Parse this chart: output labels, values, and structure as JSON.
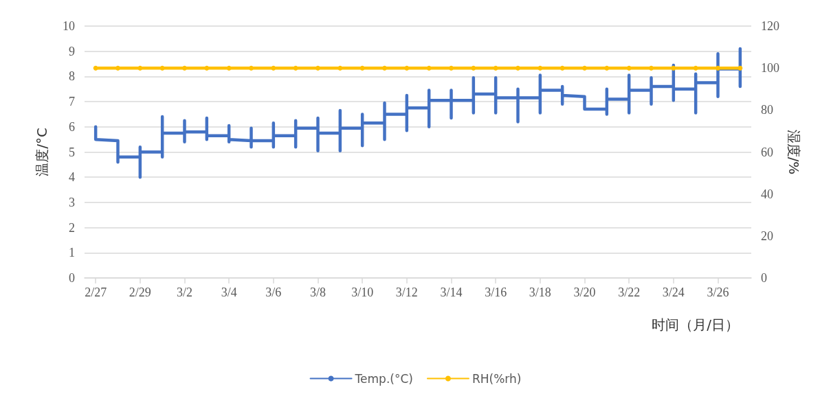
{
  "chart_data": {
    "type": "line",
    "xlabel": "时间（月/日）",
    "ylabel": "温度/°C",
    "y2label": "湿度/%",
    "xlim": [
      "--02-26T12:00",
      "--03-27T12:00"
    ],
    "xticks": [
      {
        "value": "--02-27",
        "label": "2/27"
      },
      {
        "value": "--02-29",
        "label": "2/29"
      },
      {
        "value": "--03-02",
        "label": "3/2"
      },
      {
        "value": "--03-04",
        "label": "3/4"
      },
      {
        "value": "--03-06",
        "label": "3/6"
      },
      {
        "value": "--03-08",
        "label": "3/8"
      },
      {
        "value": "--03-10",
        "label": "3/10"
      },
      {
        "value": "--03-12",
        "label": "3/12"
      },
      {
        "value": "--03-14",
        "label": "3/14"
      },
      {
        "value": "--03-16",
        "label": "3/16"
      },
      {
        "value": "--03-18",
        "label": "3/18"
      },
      {
        "value": "--03-20",
        "label": "3/20"
      },
      {
        "value": "--03-22",
        "label": "3/22"
      },
      {
        "value": "--03-24",
        "label": "3/24"
      },
      {
        "value": "--03-26",
        "label": "3/26"
      }
    ],
    "ylim": [
      0,
      10
    ],
    "yticks": [
      0,
      1,
      2,
      3,
      4,
      5,
      6,
      7,
      8,
      9,
      10
    ],
    "y2lim": [
      0,
      120
    ],
    "y2ticks": [
      0,
      20,
      40,
      60,
      80,
      100,
      120
    ],
    "grid": "y",
    "legend": "bottom",
    "line_style": "solid",
    "series": [
      {
        "name": "Temp.(°C)",
        "color": "#4472c4",
        "marker": "none",
        "x": [
          "--02-27",
          "--02-27",
          "--02-28",
          "--02-28",
          "--02-28",
          "--02-29",
          "--02-29",
          "--02-29",
          "--02-29",
          "--03-01",
          "--03-01",
          "--03-01",
          "--03-01",
          "--03-02",
          "--03-02",
          "--03-02",
          "--03-02",
          "--03-03",
          "--03-03",
          "--03-03",
          "--03-03",
          "--03-04",
          "--03-04",
          "--03-04",
          "--03-04",
          "--03-05",
          "--03-05",
          "--03-05",
          "--03-05",
          "--03-06",
          "--03-06",
          "--03-06",
          "--03-06",
          "--03-07",
          "--03-07",
          "--03-07",
          "--03-07",
          "--03-08",
          "--03-08",
          "--03-08",
          "--03-08",
          "--03-09",
          "--03-09",
          "--03-09",
          "--03-09",
          "--03-10",
          "--03-10",
          "--03-10",
          "--03-10",
          "--03-11",
          "--03-11",
          "--03-11",
          "--03-11",
          "--03-12",
          "--03-12",
          "--03-12",
          "--03-12",
          "--03-13",
          "--03-13",
          "--03-13",
          "--03-13",
          "--03-14",
          "--03-14",
          "--03-14",
          "--03-14",
          "--03-15",
          "--03-15",
          "--03-15",
          "--03-15",
          "--03-16",
          "--03-16",
          "--03-16",
          "--03-16",
          "--03-17",
          "--03-17",
          "--03-17",
          "--03-17",
          "--03-18",
          "--03-18",
          "--03-18",
          "--03-18",
          "--03-19",
          "--03-19",
          "--03-19",
          "--03-19",
          "--03-20",
          "--03-20",
          "--03-21",
          "--03-21",
          "--03-21",
          "--03-21",
          "--03-22",
          "--03-22",
          "--03-22",
          "--03-22",
          "--03-23",
          "--03-23",
          "--03-23",
          "--03-23",
          "--03-24",
          "--03-24",
          "--03-24",
          "--03-24",
          "--03-25",
          "--03-25",
          "--03-25",
          "--03-25",
          "--03-26",
          "--03-26",
          "--03-26",
          "--03-26",
          "--03-27",
          "--03-27",
          "--03-27"
        ],
        "values": [
          6.0,
          5.5,
          5.45,
          4.6,
          4.8,
          4.8,
          5.2,
          4.0,
          5.0,
          5.0,
          4.8,
          6.4,
          5.75,
          5.75,
          6.25,
          5.4,
          5.8,
          5.8,
          6.35,
          5.5,
          5.65,
          5.65,
          6.05,
          5.4,
          5.5,
          5.45,
          5.95,
          5.2,
          5.45,
          5.45,
          6.15,
          5.2,
          5.65,
          5.65,
          6.25,
          5.2,
          5.95,
          5.95,
          6.35,
          5.05,
          5.75,
          5.75,
          6.65,
          5.05,
          5.95,
          5.95,
          6.5,
          5.25,
          6.15,
          6.15,
          6.95,
          5.5,
          6.5,
          6.5,
          7.25,
          5.85,
          6.75,
          6.75,
          7.45,
          6.0,
          7.05,
          7.05,
          7.45,
          6.35,
          7.05,
          7.05,
          7.95,
          6.55,
          7.3,
          7.3,
          7.95,
          6.55,
          7.15,
          7.15,
          7.5,
          6.2,
          7.15,
          7.15,
          8.05,
          6.55,
          7.45,
          7.45,
          7.6,
          6.9,
          7.25,
          7.2,
          6.7,
          6.7,
          7.5,
          6.5,
          7.1,
          7.1,
          8.05,
          6.55,
          7.45,
          7.45,
          7.95,
          6.9,
          7.6,
          7.6,
          8.45,
          7.05,
          7.5,
          7.5,
          8.1,
          6.55,
          7.75,
          7.75,
          8.9,
          7.2,
          8.3,
          8.3,
          9.1,
          7.6
        ]
      },
      {
        "name": "RH(%rh)",
        "color": "#ffc000",
        "marker": "circle",
        "axis": "y2",
        "x": [
          "--02-27",
          "--02-28",
          "--02-29",
          "--03-01",
          "--03-02",
          "--03-03",
          "--03-04",
          "--03-05",
          "--03-06",
          "--03-07",
          "--03-08",
          "--03-09",
          "--03-10",
          "--03-11",
          "--03-12",
          "--03-13",
          "--03-14",
          "--03-15",
          "--03-16",
          "--03-17",
          "--03-18",
          "--03-19",
          "--03-20",
          "--03-21",
          "--03-22",
          "--03-23",
          "--03-24",
          "--03-25",
          "--03-26",
          "--03-27"
        ],
        "values": [
          100,
          100,
          100,
          100,
          100,
          100,
          100,
          100,
          100,
          100,
          100,
          100,
          100,
          100,
          100,
          100,
          100,
          100,
          100,
          100,
          100,
          100,
          100,
          100,
          100,
          100,
          100,
          100,
          100,
          100
        ]
      }
    ]
  }
}
